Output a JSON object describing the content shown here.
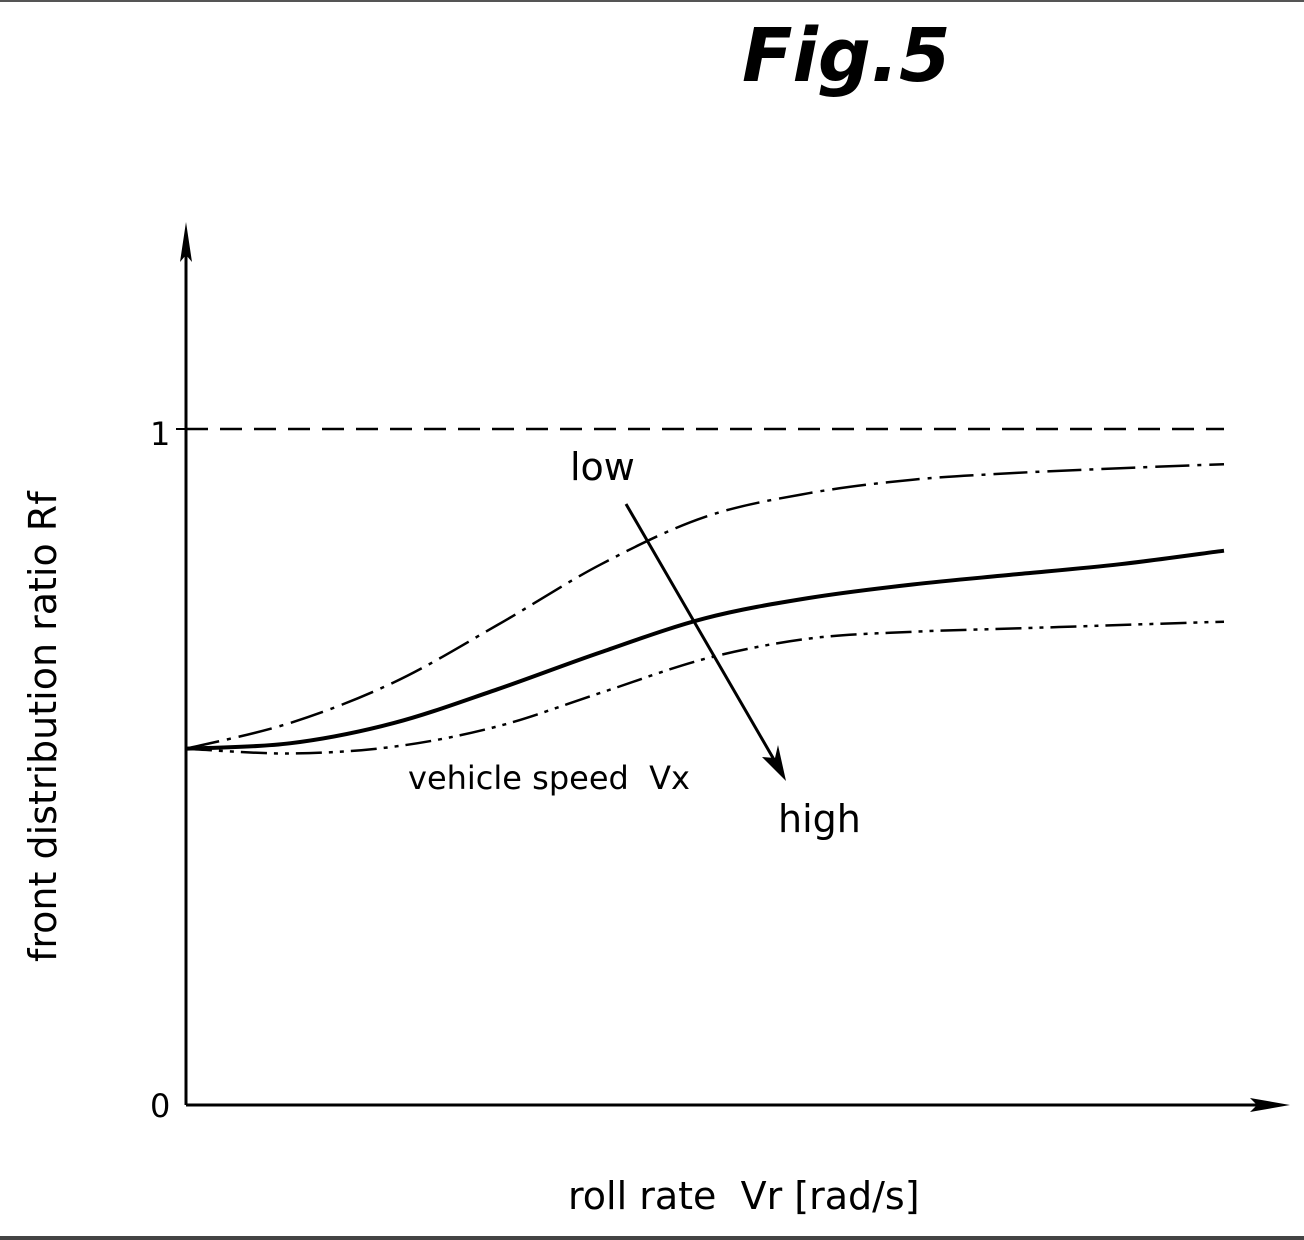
{
  "figure_title": "Fig.5",
  "colors": {
    "ink": "#000000",
    "background": "#ffffff"
  },
  "chart_data": {
    "type": "line",
    "title": "Fig.5",
    "xlabel": "roll rate  Vr [rad/s]",
    "ylabel": "front distribution ratio  Rf",
    "y_ticks": [
      "0",
      "1"
    ],
    "ylim": [
      0,
      1.25
    ],
    "xlim": [
      0,
      1.0
    ],
    "grid": false,
    "reference_line": {
      "y": 1,
      "style": "dashed"
    },
    "series": [
      {
        "style": "dash-dot",
        "x": [
          0,
          0.1,
          0.2,
          0.3,
          0.4,
          0.5,
          0.6,
          0.7,
          0.8,
          0.9,
          1.0
        ],
        "y": [
          0.527,
          0.565,
          0.625,
          0.71,
          0.8,
          0.87,
          0.905,
          0.925,
          0.935,
          0.942,
          0.948
        ]
      },
      {
        "style": "solid",
        "x": [
          0,
          0.1,
          0.2,
          0.3,
          0.4,
          0.5,
          0.6,
          0.7,
          0.8,
          0.9,
          1.0
        ],
        "y": [
          0.527,
          0.535,
          0.565,
          0.615,
          0.67,
          0.72,
          0.75,
          0.77,
          0.785,
          0.8,
          0.82
        ]
      },
      {
        "style": "dash-dot-dot",
        "x": [
          0,
          0.1,
          0.2,
          0.3,
          0.4,
          0.5,
          0.6,
          0.7,
          0.8,
          0.9,
          1.0
        ],
        "y": [
          0.527,
          0.52,
          0.53,
          0.56,
          0.61,
          0.66,
          0.69,
          0.7,
          0.705,
          0.71,
          0.715
        ]
      }
    ],
    "annotation": {
      "arrow": "low → high",
      "low_label": "low",
      "high_label": "high",
      "text": "vehicle speed  Vx"
    }
  }
}
